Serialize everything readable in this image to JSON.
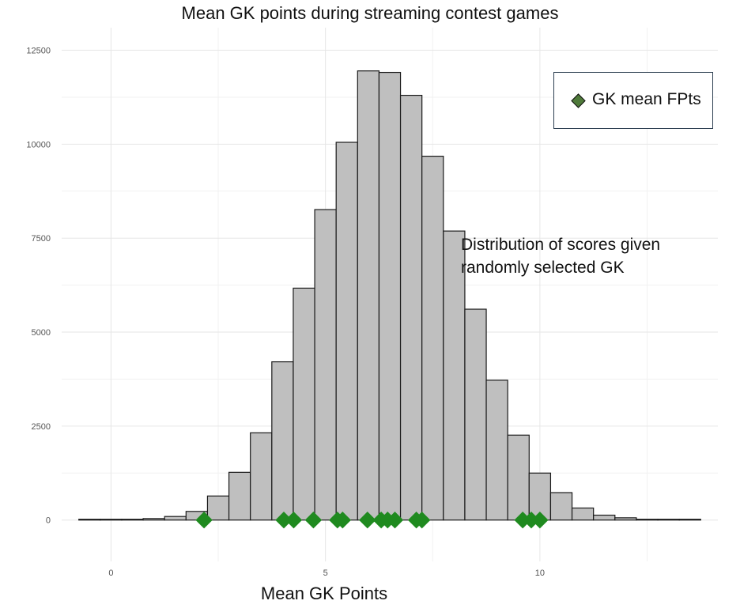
{
  "chart_data": {
    "type": "bar",
    "title": "Mean GK points during streaming contest games",
    "xlabel": "Mean GK Points",
    "ylabel": "",
    "xlim": [
      -1.15,
      14.15
    ],
    "ylim": [
      -1100,
      13100
    ],
    "x_ticks": [
      0,
      5,
      10
    ],
    "y_ticks": [
      0,
      2500,
      5000,
      7500,
      10000,
      12500
    ],
    "grid": true,
    "bin_width": 0.5,
    "bins": [
      {
        "x": -0.5,
        "count": 3
      },
      {
        "x": 0.0,
        "count": 5
      },
      {
        "x": 0.5,
        "count": 15
      },
      {
        "x": 1.0,
        "count": 40
      },
      {
        "x": 1.5,
        "count": 95
      },
      {
        "x": 2.0,
        "count": 230
      },
      {
        "x": 2.5,
        "count": 640
      },
      {
        "x": 3.0,
        "count": 1270
      },
      {
        "x": 3.5,
        "count": 2320
      },
      {
        "x": 4.0,
        "count": 4210
      },
      {
        "x": 4.5,
        "count": 6170
      },
      {
        "x": 5.0,
        "count": 8260
      },
      {
        "x": 5.5,
        "count": 10050
      },
      {
        "x": 6.0,
        "count": 11950
      },
      {
        "x": 6.5,
        "count": 11910
      },
      {
        "x": 7.0,
        "count": 11300
      },
      {
        "x": 7.5,
        "count": 9680
      },
      {
        "x": 8.0,
        "count": 7690
      },
      {
        "x": 8.5,
        "count": 5610
      },
      {
        "x": 9.0,
        "count": 3720
      },
      {
        "x": 9.5,
        "count": 2260
      },
      {
        "x": 10.0,
        "count": 1250
      },
      {
        "x": 10.5,
        "count": 730
      },
      {
        "x": 11.0,
        "count": 320
      },
      {
        "x": 11.5,
        "count": 130
      },
      {
        "x": 12.0,
        "count": 60
      },
      {
        "x": 12.5,
        "count": 20
      },
      {
        "x": 13.0,
        "count": 8
      },
      {
        "x": 13.5,
        "count": 3
      }
    ],
    "series": [
      {
        "name": "GK mean FPts",
        "type": "scatter",
        "y": 0,
        "x": [
          2.17,
          4.03,
          4.26,
          4.72,
          5.28,
          5.4,
          5.98,
          6.3,
          6.45,
          6.62,
          7.12,
          7.25,
          9.6,
          9.8,
          10.0
        ]
      }
    ],
    "legend": {
      "position": "top-right",
      "label": "GK mean FPts"
    },
    "annotation": [
      "Distribution of scores given",
      "randomly selected GK"
    ],
    "colors": {
      "bar_fill": "#bfbfbf",
      "bar_stroke": "#1a1a1a",
      "point": "#1f8a1f",
      "legend_key": "#4f7a3a",
      "legend_border": "#2c3e50"
    }
  }
}
